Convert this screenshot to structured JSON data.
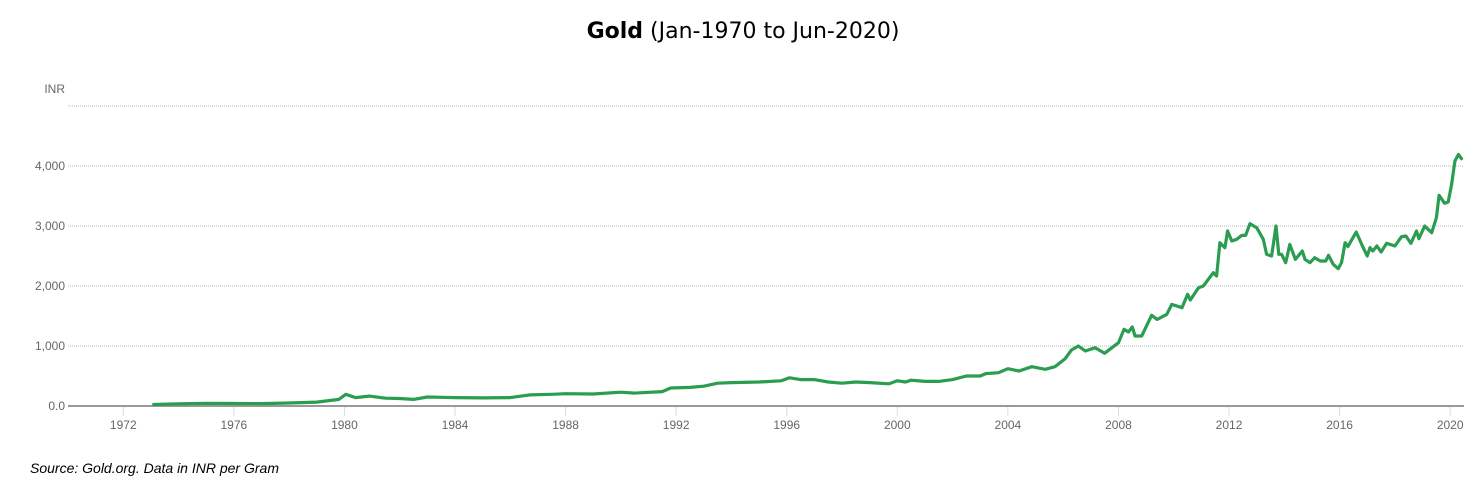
{
  "chart_data": {
    "type": "line",
    "title_bold": "Gold",
    "title_rest": " (Jan-1970 to Jun-2020)",
    "ylabel": "INR",
    "source": "Source: Gold.org. Data in INR per Gram",
    "xlim": [
      1970,
      2020.5
    ],
    "ylim": [
      0,
      5000
    ],
    "grid": true,
    "yticks": [
      {
        "v": 0,
        "label": "0.0"
      },
      {
        "v": 1000,
        "label": "1,000"
      },
      {
        "v": 2000,
        "label": "2,000"
      },
      {
        "v": 3000,
        "label": "3,000"
      },
      {
        "v": 4000,
        "label": "4,000"
      },
      {
        "v": 5000,
        "label": ""
      }
    ],
    "xticks": [
      {
        "v": 1972,
        "label": "1972"
      },
      {
        "v": 1976,
        "label": "1976"
      },
      {
        "v": 1980,
        "label": "1980"
      },
      {
        "v": 1984,
        "label": "1984"
      },
      {
        "v": 1988,
        "label": "1988"
      },
      {
        "v": 1992,
        "label": "1992"
      },
      {
        "v": 1996,
        "label": "1996"
      },
      {
        "v": 2000,
        "label": "2000"
      },
      {
        "v": 2004,
        "label": "2004"
      },
      {
        "v": 2008,
        "label": "2008"
      },
      {
        "v": 2012,
        "label": "2012"
      },
      {
        "v": 2016,
        "label": "2016"
      },
      {
        "v": 2020,
        "label": "2020"
      }
    ],
    "series": [
      {
        "name": "Gold (INR per gram)",
        "color": "#2a9d50",
        "points": [
          [
            1973.1,
            25
          ],
          [
            1974,
            35
          ],
          [
            1975,
            45
          ],
          [
            1976,
            42
          ],
          [
            1977,
            40
          ],
          [
            1978,
            50
          ],
          [
            1979,
            65
          ],
          [
            1979.8,
            110
          ],
          [
            1980.05,
            195
          ],
          [
            1980.4,
            140
          ],
          [
            1980.9,
            165
          ],
          [
            1981.5,
            130
          ],
          [
            1982,
            125
          ],
          [
            1982.5,
            110
          ],
          [
            1983,
            150
          ],
          [
            1983.5,
            145
          ],
          [
            1984,
            140
          ],
          [
            1985,
            135
          ],
          [
            1986,
            140
          ],
          [
            1986.7,
            185
          ],
          [
            1987.5,
            195
          ],
          [
            1988,
            205
          ],
          [
            1989,
            200
          ],
          [
            1990,
            230
          ],
          [
            1990.5,
            215
          ],
          [
            1991.5,
            240
          ],
          [
            1991.8,
            300
          ],
          [
            1992.5,
            310
          ],
          [
            1993,
            330
          ],
          [
            1993.5,
            380
          ],
          [
            1994,
            390
          ],
          [
            1995,
            400
          ],
          [
            1995.8,
            420
          ],
          [
            1996.1,
            470
          ],
          [
            1996.5,
            440
          ],
          [
            1997,
            440
          ],
          [
            1997.5,
            400
          ],
          [
            1998,
            380
          ],
          [
            1998.5,
            400
          ],
          [
            1999,
            390
          ],
          [
            1999.7,
            370
          ],
          [
            2000,
            420
          ],
          [
            2000.3,
            400
          ],
          [
            2000.5,
            430
          ],
          [
            2001,
            410
          ],
          [
            2001.5,
            410
          ],
          [
            2002,
            440
          ],
          [
            2002.5,
            500
          ],
          [
            2003,
            500
          ],
          [
            2003.2,
            540
          ],
          [
            2003.66,
            555
          ],
          [
            2004.0,
            622
          ],
          [
            2004.4,
            583
          ],
          [
            2004.87,
            655
          ],
          [
            2005.35,
            611
          ],
          [
            2005.7,
            655
          ],
          [
            2006.07,
            789
          ],
          [
            2006.3,
            933
          ],
          [
            2006.55,
            1000
          ],
          [
            2006.8,
            917
          ],
          [
            2007.16,
            972
          ],
          [
            2007.5,
            878
          ],
          [
            2008.0,
            1055
          ],
          [
            2008.2,
            1278
          ],
          [
            2008.36,
            1233
          ],
          [
            2008.5,
            1317
          ],
          [
            2008.6,
            1167
          ],
          [
            2008.84,
            1167
          ],
          [
            2009.2,
            1511
          ],
          [
            2009.4,
            1444
          ],
          [
            2009.75,
            1528
          ],
          [
            2009.93,
            1694
          ],
          [
            2010.3,
            1639
          ],
          [
            2010.5,
            1861
          ],
          [
            2010.6,
            1767
          ],
          [
            2010.9,
            1972
          ],
          [
            2011.07,
            2000
          ],
          [
            2011.43,
            2222
          ],
          [
            2011.55,
            2167
          ],
          [
            2011.67,
            2722
          ],
          [
            2011.85,
            2639
          ],
          [
            2011.95,
            2917
          ],
          [
            2012.1,
            2750
          ],
          [
            2012.28,
            2778
          ],
          [
            2012.46,
            2844
          ],
          [
            2012.6,
            2844
          ],
          [
            2012.76,
            3039
          ],
          [
            2013.0,
            2972
          ],
          [
            2013.24,
            2778
          ],
          [
            2013.36,
            2528
          ],
          [
            2013.54,
            2500
          ],
          [
            2013.7,
            3000
          ],
          [
            2013.8,
            2528
          ],
          [
            2013.9,
            2528
          ],
          [
            2014.05,
            2389
          ],
          [
            2014.2,
            2694
          ],
          [
            2014.4,
            2444
          ],
          [
            2014.65,
            2583
          ],
          [
            2014.75,
            2444
          ],
          [
            2014.93,
            2389
          ],
          [
            2015.1,
            2472
          ],
          [
            2015.3,
            2417
          ],
          [
            2015.5,
            2417
          ],
          [
            2015.6,
            2511
          ],
          [
            2015.77,
            2361
          ],
          [
            2015.95,
            2289
          ],
          [
            2016.07,
            2389
          ],
          [
            2016.2,
            2722
          ],
          [
            2016.3,
            2656
          ],
          [
            2016.6,
            2900
          ],
          [
            2016.8,
            2694
          ],
          [
            2017.0,
            2500
          ],
          [
            2017.1,
            2639
          ],
          [
            2017.2,
            2583
          ],
          [
            2017.35,
            2667
          ],
          [
            2017.5,
            2567
          ],
          [
            2017.7,
            2711
          ],
          [
            2018.0,
            2667
          ],
          [
            2018.24,
            2822
          ],
          [
            2018.4,
            2833
          ],
          [
            2018.58,
            2711
          ],
          [
            2018.78,
            2917
          ],
          [
            2018.87,
            2789
          ],
          [
            2019.08,
            3000
          ],
          [
            2019.33,
            2889
          ],
          [
            2019.5,
            3139
          ],
          [
            2019.6,
            3511
          ],
          [
            2019.8,
            3378
          ],
          [
            2019.93,
            3400
          ],
          [
            2020.05,
            3694
          ],
          [
            2020.17,
            4083
          ],
          [
            2020.3,
            4194
          ],
          [
            2020.41,
            4122
          ]
        ]
      }
    ]
  }
}
